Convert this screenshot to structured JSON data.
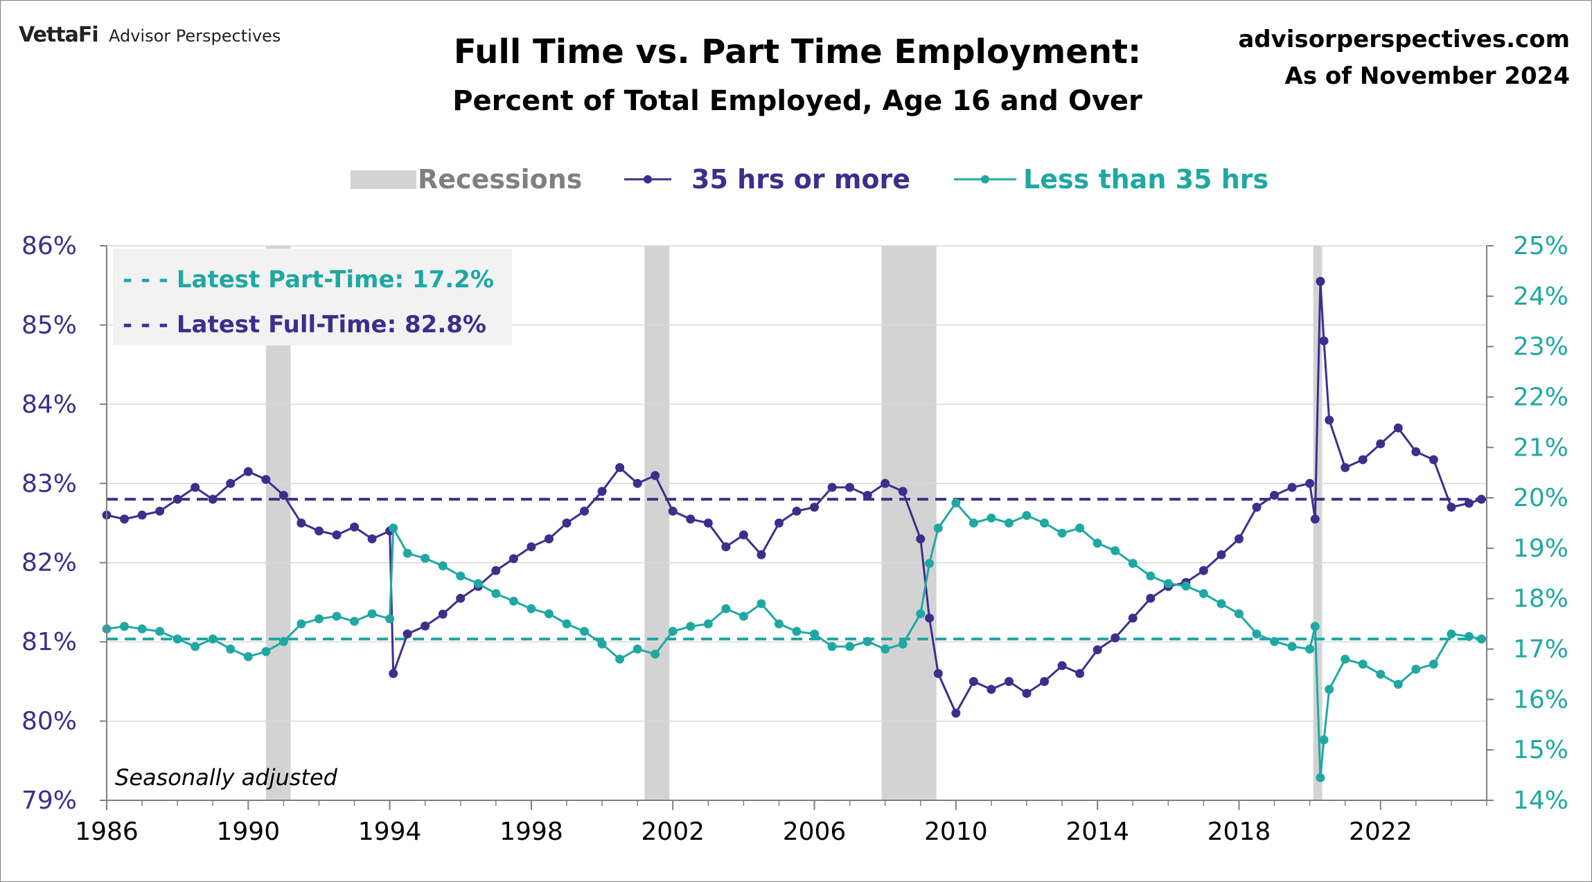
{
  "header": {
    "logo_brand": "VettaFi",
    "logo_sub": "Advisor Perspectives",
    "site": "advisorperspectives.com",
    "as_of": "As of November 2024"
  },
  "chart_data": {
    "type": "line",
    "title": "Full Time vs. Part Time Employment:",
    "subtitle": "Percent of Total Employed, Age 16 and Over",
    "note": "Seasonally adjusted",
    "legend": {
      "position": "top-center",
      "items": [
        "Recessions",
        "35 hrs or more",
        "Less than 35 hrs"
      ]
    },
    "annotations": [
      "- - - Latest Part-Time: 17.2%",
      "- - - Latest Full-Time: 82.8%"
    ],
    "x_ticks": [
      "1986",
      "1990",
      "1994",
      "1998",
      "2002",
      "2006",
      "2010",
      "2014",
      "2018",
      "2022"
    ],
    "y_left_ticks": [
      "79%",
      "80%",
      "81%",
      "82%",
      "83%",
      "84%",
      "85%",
      "86%"
    ],
    "y_right_ticks": [
      "14%",
      "15%",
      "16%",
      "17%",
      "18%",
      "19%",
      "20%",
      "21%",
      "22%",
      "23%",
      "24%",
      "25%"
    ],
    "xlim": [
      1986.0,
      2025.0
    ],
    "ylim_left": [
      79,
      86
    ],
    "ylim_right": [
      14,
      25
    ],
    "grid": "horizontal",
    "colors": {
      "full_time": "#3f2d8c",
      "part_time": "#1fa8a3",
      "recession": "#d3d3d3",
      "annotation_box": "#f2f2f2",
      "axis": "#7f7f7f",
      "grid": "#d9d9d9"
    },
    "recessions": [
      [
        1990.5,
        1991.2
      ],
      [
        2001.2,
        2001.9
      ],
      [
        2007.9,
        2009.45
      ],
      [
        2020.1,
        2020.35
      ]
    ],
    "reference_lines": {
      "full_time": 82.8,
      "part_time": 17.2
    },
    "series": [
      {
        "name": "35 hrs or more",
        "axis": "left",
        "points": [
          [
            1986.0,
            82.6
          ],
          [
            1986.5,
            82.55
          ],
          [
            1987.0,
            82.6
          ],
          [
            1987.5,
            82.65
          ],
          [
            1988.0,
            82.8
          ],
          [
            1988.5,
            82.95
          ],
          [
            1989.0,
            82.8
          ],
          [
            1989.5,
            83.0
          ],
          [
            1990.0,
            83.15
          ],
          [
            1990.5,
            83.05
          ],
          [
            1991.0,
            82.85
          ],
          [
            1991.5,
            82.5
          ],
          [
            1992.0,
            82.4
          ],
          [
            1992.5,
            82.35
          ],
          [
            1993.0,
            82.45
          ],
          [
            1993.5,
            82.3
          ],
          [
            1994.0,
            82.4
          ],
          [
            1994.1,
            80.6
          ],
          [
            1994.5,
            81.1
          ],
          [
            1995.0,
            81.2
          ],
          [
            1995.5,
            81.35
          ],
          [
            1996.0,
            81.55
          ],
          [
            1996.5,
            81.7
          ],
          [
            1997.0,
            81.9
          ],
          [
            1997.5,
            82.05
          ],
          [
            1998.0,
            82.2
          ],
          [
            1998.5,
            82.3
          ],
          [
            1999.0,
            82.5
          ],
          [
            1999.5,
            82.65
          ],
          [
            2000.0,
            82.9
          ],
          [
            2000.5,
            83.2
          ],
          [
            2001.0,
            83.0
          ],
          [
            2001.5,
            83.1
          ],
          [
            2002.0,
            82.65
          ],
          [
            2002.5,
            82.55
          ],
          [
            2003.0,
            82.5
          ],
          [
            2003.5,
            82.2
          ],
          [
            2004.0,
            82.35
          ],
          [
            2004.5,
            82.1
          ],
          [
            2005.0,
            82.5
          ],
          [
            2005.5,
            82.65
          ],
          [
            2006.0,
            82.7
          ],
          [
            2006.5,
            82.95
          ],
          [
            2007.0,
            82.95
          ],
          [
            2007.5,
            82.85
          ],
          [
            2008.0,
            83.0
          ],
          [
            2008.5,
            82.9
          ],
          [
            2009.0,
            82.3
          ],
          [
            2009.25,
            81.3
          ],
          [
            2009.5,
            80.6
          ],
          [
            2010.0,
            80.1
          ],
          [
            2010.5,
            80.5
          ],
          [
            2011.0,
            80.4
          ],
          [
            2011.5,
            80.5
          ],
          [
            2012.0,
            80.35
          ],
          [
            2012.5,
            80.5
          ],
          [
            2013.0,
            80.7
          ],
          [
            2013.5,
            80.6
          ],
          [
            2014.0,
            80.9
          ],
          [
            2014.5,
            81.05
          ],
          [
            2015.0,
            81.3
          ],
          [
            2015.5,
            81.55
          ],
          [
            2016.0,
            81.7
          ],
          [
            2016.5,
            81.75
          ],
          [
            2017.0,
            81.9
          ],
          [
            2017.5,
            82.1
          ],
          [
            2018.0,
            82.3
          ],
          [
            2018.5,
            82.7
          ],
          [
            2019.0,
            82.85
          ],
          [
            2019.5,
            82.95
          ],
          [
            2020.0,
            83.0
          ],
          [
            2020.15,
            82.55
          ],
          [
            2020.3,
            85.55
          ],
          [
            2020.4,
            84.8
          ],
          [
            2020.55,
            83.8
          ],
          [
            2021.0,
            83.2
          ],
          [
            2021.5,
            83.3
          ],
          [
            2022.0,
            83.5
          ],
          [
            2022.5,
            83.7
          ],
          [
            2023.0,
            83.4
          ],
          [
            2023.5,
            83.3
          ],
          [
            2024.0,
            82.7
          ],
          [
            2024.5,
            82.75
          ],
          [
            2024.85,
            82.8
          ]
        ]
      },
      {
        "name": "Less than 35 hrs",
        "axis": "right",
        "points": [
          [
            1986.0,
            17.4
          ],
          [
            1986.5,
            17.45
          ],
          [
            1987.0,
            17.4
          ],
          [
            1987.5,
            17.35
          ],
          [
            1988.0,
            17.2
          ],
          [
            1988.5,
            17.05
          ],
          [
            1989.0,
            17.2
          ],
          [
            1989.5,
            17.0
          ],
          [
            1990.0,
            16.85
          ],
          [
            1990.5,
            16.95
          ],
          [
            1991.0,
            17.15
          ],
          [
            1991.5,
            17.5
          ],
          [
            1992.0,
            17.6
          ],
          [
            1992.5,
            17.65
          ],
          [
            1993.0,
            17.55
          ],
          [
            1993.5,
            17.7
          ],
          [
            1994.0,
            17.6
          ],
          [
            1994.1,
            19.4
          ],
          [
            1994.5,
            18.9
          ],
          [
            1995.0,
            18.8
          ],
          [
            1995.5,
            18.65
          ],
          [
            1996.0,
            18.45
          ],
          [
            1996.5,
            18.3
          ],
          [
            1997.0,
            18.1
          ],
          [
            1997.5,
            17.95
          ],
          [
            1998.0,
            17.8
          ],
          [
            1998.5,
            17.7
          ],
          [
            1999.0,
            17.5
          ],
          [
            1999.5,
            17.35
          ],
          [
            2000.0,
            17.1
          ],
          [
            2000.5,
            16.8
          ],
          [
            2001.0,
            17.0
          ],
          [
            2001.5,
            16.9
          ],
          [
            2002.0,
            17.35
          ],
          [
            2002.5,
            17.45
          ],
          [
            2003.0,
            17.5
          ],
          [
            2003.5,
            17.8
          ],
          [
            2004.0,
            17.65
          ],
          [
            2004.5,
            17.9
          ],
          [
            2005.0,
            17.5
          ],
          [
            2005.5,
            17.35
          ],
          [
            2006.0,
            17.3
          ],
          [
            2006.5,
            17.05
          ],
          [
            2007.0,
            17.05
          ],
          [
            2007.5,
            17.15
          ],
          [
            2008.0,
            17.0
          ],
          [
            2008.5,
            17.1
          ],
          [
            2009.0,
            17.7
          ],
          [
            2009.25,
            18.7
          ],
          [
            2009.5,
            19.4
          ],
          [
            2010.0,
            19.9
          ],
          [
            2010.5,
            19.5
          ],
          [
            2011.0,
            19.6
          ],
          [
            2011.5,
            19.5
          ],
          [
            2012.0,
            19.65
          ],
          [
            2012.5,
            19.5
          ],
          [
            2013.0,
            19.3
          ],
          [
            2013.5,
            19.4
          ],
          [
            2014.0,
            19.1
          ],
          [
            2014.5,
            18.95
          ],
          [
            2015.0,
            18.7
          ],
          [
            2015.5,
            18.45
          ],
          [
            2016.0,
            18.3
          ],
          [
            2016.5,
            18.25
          ],
          [
            2017.0,
            18.1
          ],
          [
            2017.5,
            17.9
          ],
          [
            2018.0,
            17.7
          ],
          [
            2018.5,
            17.3
          ],
          [
            2019.0,
            17.15
          ],
          [
            2019.5,
            17.05
          ],
          [
            2020.0,
            17.0
          ],
          [
            2020.15,
            17.45
          ],
          [
            2020.3,
            14.45
          ],
          [
            2020.4,
            15.2
          ],
          [
            2020.55,
            16.2
          ],
          [
            2021.0,
            16.8
          ],
          [
            2021.5,
            16.7
          ],
          [
            2022.0,
            16.5
          ],
          [
            2022.5,
            16.3
          ],
          [
            2023.0,
            16.6
          ],
          [
            2023.5,
            16.7
          ],
          [
            2024.0,
            17.3
          ],
          [
            2024.5,
            17.25
          ],
          [
            2024.85,
            17.2
          ]
        ]
      }
    ]
  }
}
